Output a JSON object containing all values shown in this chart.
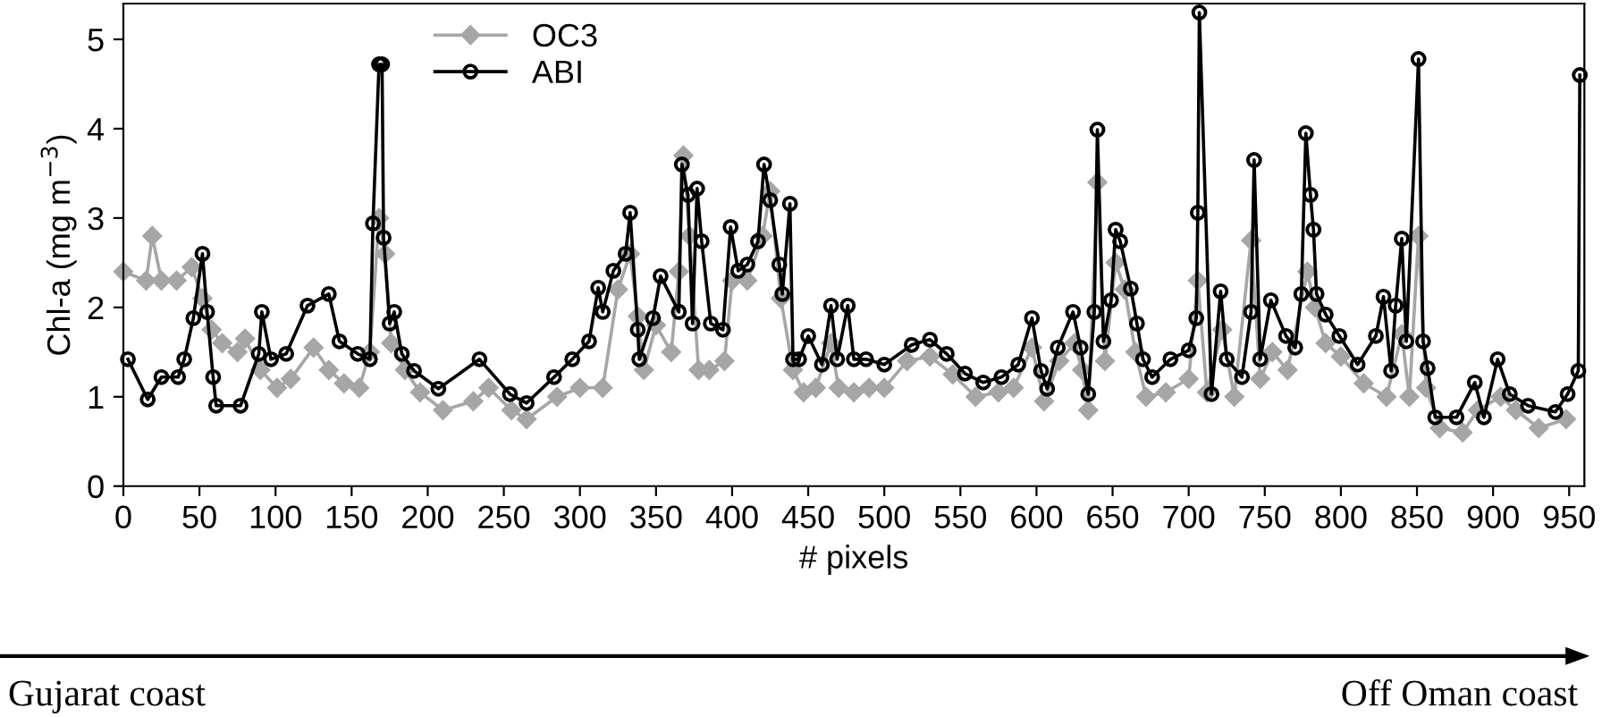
{
  "chart_data": {
    "type": "line",
    "xlabel": "# pixels",
    "ylabel": "Chl-a (mg m$^{−3}$)",
    "annotations": [
      "Gujarat coast",
      "Off Oman coast"
    ],
    "xlim": [
      0,
      960
    ],
    "ylim": [
      0,
      5.4
    ],
    "xticks": [
      0,
      50,
      100,
      150,
      200,
      250,
      300,
      350,
      400,
      450,
      500,
      550,
      600,
      650,
      700,
      750,
      800,
      850,
      900,
      950
    ],
    "yticks": [
      0,
      1,
      2,
      3,
      4,
      5
    ],
    "grid": false,
    "legend": "top left",
    "line_style": "solid",
    "series": [
      {
        "name": "OC3",
        "color": "#a6a6a6",
        "marker": "diamond",
        "x": [
          0,
          15,
          19,
          25,
          35,
          45,
          52,
          58,
          65,
          75,
          80,
          90,
          101,
          110,
          125,
          135,
          145,
          155,
          162,
          168,
          172,
          176,
          185,
          195,
          210,
          230,
          240,
          255,
          265,
          285,
          300,
          315,
          325,
          333,
          338,
          342,
          350,
          360,
          365,
          368,
          372,
          378,
          385,
          395,
          400,
          410,
          420,
          425,
          432,
          440,
          447,
          455,
          465,
          470,
          480,
          490,
          500,
          515,
          530,
          545,
          560,
          575,
          585,
          597,
          605,
          615,
          625,
          630,
          634,
          640,
          645,
          652,
          658,
          665,
          672,
          685,
          700,
          706,
          712,
          722,
          730,
          741,
          747,
          755,
          765,
          778,
          783,
          790,
          800,
          815,
          830,
          840,
          845,
          851,
          856,
          865,
          880,
          890,
          905,
          915,
          930,
          948
        ],
        "values": [
          2.4,
          2.3,
          2.8,
          2.3,
          2.3,
          2.45,
          2.1,
          1.75,
          1.6,
          1.5,
          1.65,
          1.3,
          1.1,
          1.2,
          1.55,
          1.3,
          1.15,
          1.1,
          1.5,
          3.0,
          2.6,
          1.6,
          1.3,
          1.05,
          0.85,
          0.95,
          1.1,
          0.85,
          0.75,
          1.0,
          1.1,
          1.1,
          2.2,
          2.6,
          1.9,
          1.3,
          1.8,
          1.5,
          2.4,
          3.7,
          2.8,
          1.3,
          1.3,
          1.4,
          2.3,
          2.3,
          2.8,
          3.3,
          2.1,
          1.3,
          1.05,
          1.1,
          1.6,
          1.1,
          1.05,
          1.1,
          1.1,
          1.4,
          1.45,
          1.25,
          1.0,
          1.05,
          1.1,
          1.55,
          0.95,
          1.4,
          1.6,
          1.3,
          0.85,
          3.4,
          1.4,
          2.5,
          2.2,
          1.5,
          1.0,
          1.05,
          1.2,
          2.3,
          1.05,
          1.75,
          1.0,
          2.75,
          1.2,
          1.5,
          1.3,
          2.4,
          2.0,
          1.6,
          1.45,
          1.15,
          1.0,
          1.7,
          1.0,
          2.8,
          1.1,
          0.65,
          0.6,
          0.85,
          1.0,
          0.85,
          0.65,
          0.75
        ]
      },
      {
        "name": "ABI",
        "color": "#000000",
        "marker": "circle",
        "x": [
          3,
          16,
          25,
          36,
          40,
          46,
          52,
          55,
          59,
          61,
          77,
          89,
          91,
          97,
          107,
          121,
          135,
          142,
          154,
          162,
          164,
          168,
          170,
          171,
          175,
          178,
          183,
          191,
          207,
          234,
          254,
          265,
          283,
          295,
          306,
          312,
          315,
          322,
          330,
          333,
          338,
          339,
          348,
          353,
          365,
          367,
          371,
          374,
          377,
          380,
          386,
          394,
          399,
          404,
          410,
          417,
          421,
          425,
          431,
          433,
          438,
          440,
          444,
          450,
          459,
          465,
          469,
          476,
          480,
          488,
          500,
          518,
          530,
          541,
          553,
          565,
          577,
          588,
          597,
          603,
          607,
          614,
          624,
          629,
          634,
          638,
          640,
          644,
          649,
          652,
          655,
          662,
          666,
          670,
          676,
          688,
          700,
          705,
          706,
          707,
          715,
          721,
          725,
          735,
          741,
          743,
          747,
          754,
          764,
          770,
          774,
          777,
          780,
          782,
          784,
          790,
          799,
          811,
          823,
          828,
          833,
          836,
          840,
          843,
          851,
          854,
          857,
          862,
          876,
          888,
          894,
          903,
          911,
          923,
          941,
          949,
          956,
          957
        ],
        "values": [
          1.42,
          0.97,
          1.22,
          1.22,
          1.42,
          1.88,
          2.6,
          1.95,
          1.22,
          0.9,
          0.9,
          1.48,
          1.95,
          1.42,
          1.48,
          2.02,
          2.15,
          1.62,
          1.48,
          1.42,
          2.94,
          4.72,
          4.72,
          2.78,
          1.82,
          1.95,
          1.48,
          1.29,
          1.09,
          1.42,
          1.03,
          0.93,
          1.22,
          1.42,
          1.62,
          2.22,
          1.95,
          2.41,
          2.6,
          3.06,
          1.75,
          1.42,
          1.88,
          2.35,
          1.95,
          3.6,
          3.26,
          1.82,
          3.33,
          2.74,
          1.82,
          1.75,
          2.9,
          2.41,
          2.48,
          2.74,
          3.6,
          3.2,
          2.48,
          2.15,
          3.16,
          1.42,
          1.42,
          1.68,
          1.36,
          2.02,
          1.42,
          2.02,
          1.42,
          1.42,
          1.36,
          1.58,
          1.64,
          1.48,
          1.26,
          1.16,
          1.22,
          1.36,
          1.88,
          1.29,
          1.09,
          1.55,
          1.95,
          1.55,
          1.03,
          1.95,
          3.99,
          1.62,
          2.08,
          2.87,
          2.74,
          2.21,
          1.82,
          1.42,
          1.22,
          1.42,
          1.52,
          1.88,
          3.06,
          5.3,
          1.03,
          2.18,
          1.42,
          1.22,
          1.95,
          3.65,
          1.42,
          2.08,
          1.68,
          1.55,
          2.15,
          3.95,
          3.26,
          2.87,
          2.15,
          1.92,
          1.68,
          1.36,
          1.68,
          2.12,
          1.29,
          2.02,
          2.77,
          1.62,
          4.78,
          1.62,
          1.32,
          0.77,
          0.77,
          1.16,
          0.77,
          1.42,
          1.03,
          0.9,
          0.83,
          1.03,
          1.29,
          4.6
        ]
      }
    ]
  }
}
